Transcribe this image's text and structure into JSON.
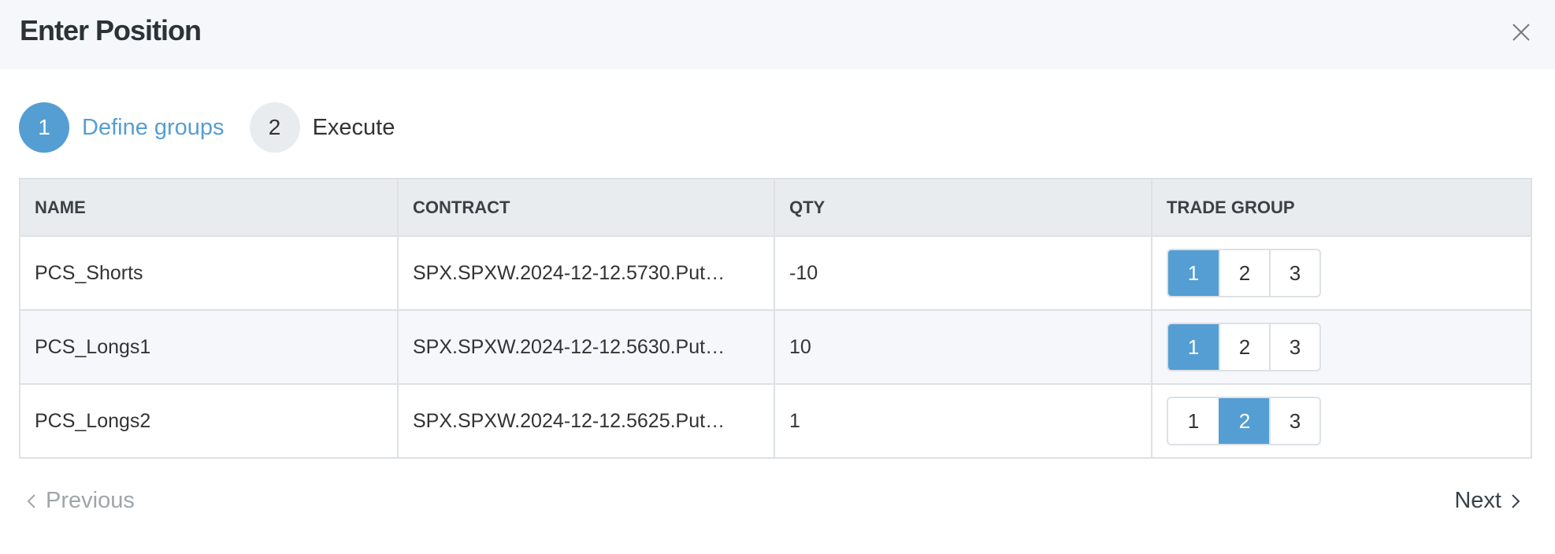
{
  "dialog": {
    "title": "Enter Position",
    "close_icon": "close-icon"
  },
  "steps": [
    {
      "number": "1",
      "label": "Define groups",
      "active": true
    },
    {
      "number": "2",
      "label": "Execute",
      "active": false
    }
  ],
  "table": {
    "headers": [
      "NAME",
      "CONTRACT",
      "QTY",
      "TRADE GROUP"
    ],
    "group_options": [
      "1",
      "2",
      "3"
    ],
    "rows": [
      {
        "name": "PCS_Shorts",
        "contract": "SPX.SPXW.2024-12-12.5730.Put…",
        "qty": "-10",
        "trade_group": "1"
      },
      {
        "name": "PCS_Longs1",
        "contract": "SPX.SPXW.2024-12-12.5630.Put…",
        "qty": "10",
        "trade_group": "1"
      },
      {
        "name": "PCS_Longs2",
        "contract": "SPX.SPXW.2024-12-12.5625.Put…",
        "qty": "1",
        "trade_group": "2"
      }
    ]
  },
  "footer": {
    "previous_label": "Previous",
    "next_label": "Next"
  },
  "colors": {
    "accent": "#559ed3",
    "header_bg": "#f5f7fa",
    "table_header_bg": "#e9ecef"
  }
}
